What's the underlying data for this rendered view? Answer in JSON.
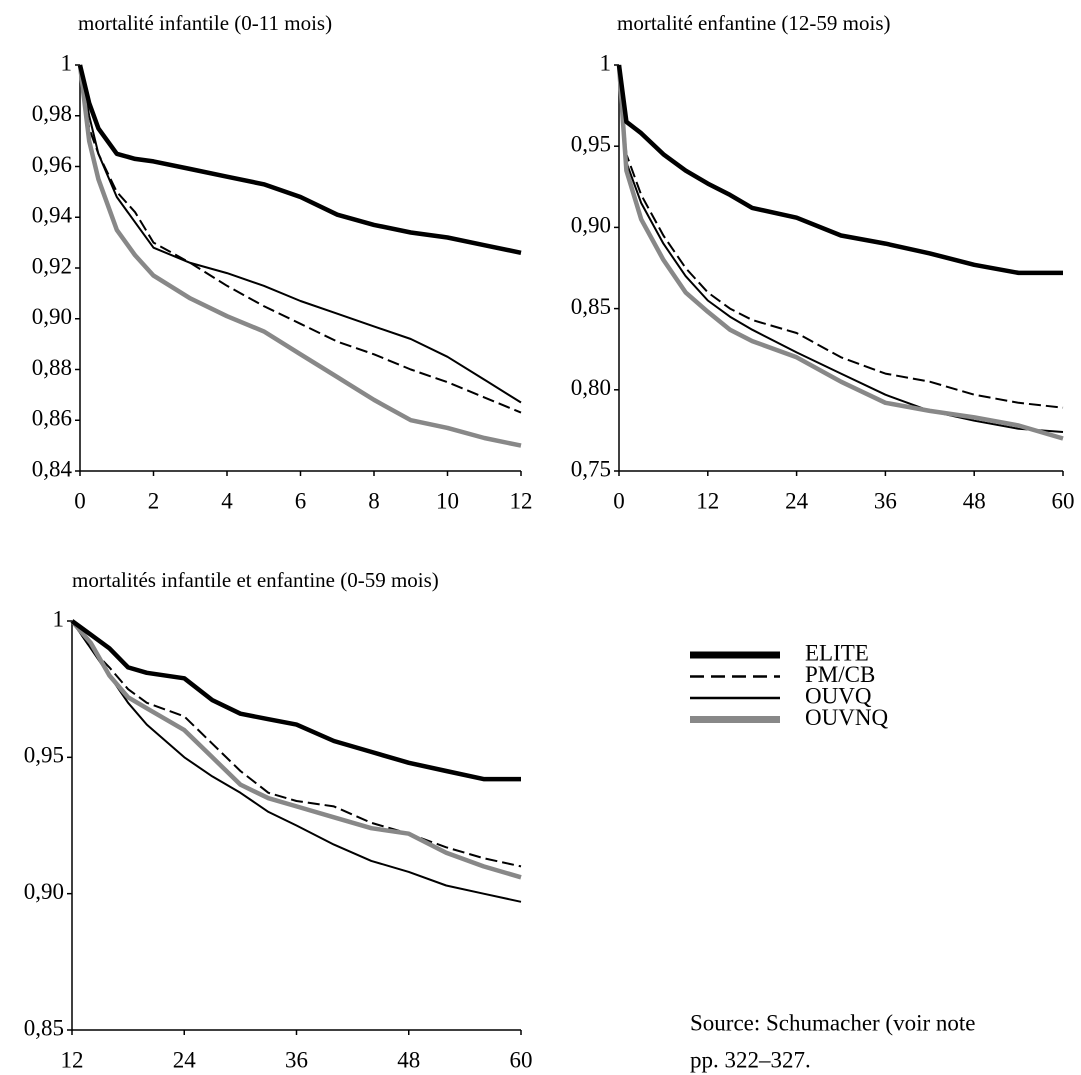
{
  "chart_data": [
    {
      "type": "line",
      "title": "mortalité infantile (0-11 mois)",
      "x": [
        0,
        0.25,
        0.5,
        1,
        1.5,
        2,
        3,
        4,
        5,
        6,
        7,
        8,
        9,
        10,
        11,
        12
      ],
      "series": [
        {
          "values": [
            1,
            0.985,
            0.975,
            0.965,
            0.963,
            0.962,
            0.959,
            0.956,
            0.953,
            0.948,
            0.941,
            0.937,
            0.934,
            0.932,
            0.929,
            0.926
          ]
        },
        {
          "values": [
            1,
            0.975,
            0.965,
            0.95,
            0.942,
            0.93,
            0.922,
            0.913,
            0.905,
            0.898,
            0.891,
            0.886,
            0.88,
            0.875,
            0.869,
            0.863
          ]
        },
        {
          "values": [
            1,
            0.98,
            0.965,
            0.948,
            0.938,
            0.928,
            0.922,
            0.918,
            0.913,
            0.907,
            0.902,
            0.897,
            0.892,
            0.885,
            0.876,
            0.867
          ]
        },
        {
          "values": [
            1,
            0.97,
            0.955,
            0.935,
            0.925,
            0.917,
            0.908,
            0.901,
            0.895,
            0.886,
            0.877,
            0.868,
            0.86,
            0.857,
            0.853,
            0.85
          ]
        }
      ],
      "xlim": [
        0,
        12
      ],
      "xticks": [
        0,
        2,
        4,
        6,
        8,
        10,
        12
      ],
      "ylim": [
        0.84,
        1
      ],
      "yticks": [
        {
          "value": 0.84,
          "label": "0,84"
        },
        {
          "value": 0.86,
          "label": "0,86"
        },
        {
          "value": 0.88,
          "label": "0,88"
        },
        {
          "value": 0.9,
          "label": "0,90"
        },
        {
          "value": 0.92,
          "label": "0,92"
        },
        {
          "value": 0.94,
          "label": "0,94"
        },
        {
          "value": 0.96,
          "label": "0,96"
        },
        {
          "value": 0.98,
          "label": "0,98"
        },
        1
      ]
    },
    {
      "type": "line",
      "title": "mortalité enfantine (12-59 mois)",
      "x": [
        0,
        1,
        3,
        6,
        9,
        12,
        15,
        18,
        24,
        30,
        36,
        42,
        48,
        54,
        60
      ],
      "series": [
        {
          "values": [
            1,
            0.965,
            0.958,
            0.945,
            0.935,
            0.927,
            0.92,
            0.912,
            0.906,
            0.895,
            0.89,
            0.884,
            0.877,
            0.872,
            0.872
          ]
        },
        {
          "values": [
            1,
            0.945,
            0.92,
            0.895,
            0.875,
            0.86,
            0.85,
            0.843,
            0.835,
            0.82,
            0.81,
            0.805,
            0.797,
            0.792,
            0.789
          ]
        },
        {
          "values": [
            1,
            0.94,
            0.915,
            0.89,
            0.87,
            0.855,
            0.845,
            0.837,
            0.823,
            0.81,
            0.797,
            0.787,
            0.781,
            0.776,
            0.774
          ]
        },
        {
          "values": [
            1,
            0.935,
            0.905,
            0.88,
            0.86,
            0.848,
            0.837,
            0.83,
            0.82,
            0.805,
            0.792,
            0.787,
            0.783,
            0.778,
            0.77
          ]
        }
      ],
      "xlim": [
        0,
        60
      ],
      "xticks": [
        0,
        12,
        24,
        36,
        48,
        60
      ],
      "ylim": [
        0.75,
        1
      ],
      "yticks": [
        {
          "value": 0.75,
          "label": "0,75"
        },
        {
          "value": 0.8,
          "label": "0,80"
        },
        {
          "value": 0.85,
          "label": "0,85"
        },
        {
          "value": 0.9,
          "label": "0,90"
        },
        {
          "value": 0.95,
          "label": "0,95"
        },
        1
      ]
    },
    {
      "type": "line",
      "title": "mortalités infantile et enfantine (0-59 mois)",
      "x": [
        12,
        14,
        16,
        18,
        20,
        24,
        27,
        30,
        33,
        36,
        40,
        44,
        48,
        52,
        56,
        60
      ],
      "series": [
        {
          "values": [
            1,
            0.995,
            0.99,
            0.983,
            0.981,
            0.979,
            0.971,
            0.966,
            0.964,
            0.962,
            0.956,
            0.952,
            0.948,
            0.945,
            0.942,
            0.942
          ]
        },
        {
          "values": [
            1,
            0.99,
            0.983,
            0.975,
            0.97,
            0.965,
            0.955,
            0.945,
            0.937,
            0.934,
            0.932,
            0.926,
            0.922,
            0.917,
            0.913,
            0.91
          ]
        },
        {
          "values": [
            1,
            0.99,
            0.98,
            0.97,
            0.962,
            0.95,
            0.943,
            0.937,
            0.93,
            0.925,
            0.918,
            0.912,
            0.908,
            0.903,
            0.9,
            0.897
          ]
        },
        {
          "values": [
            1,
            0.992,
            0.98,
            0.972,
            0.968,
            0.96,
            0.95,
            0.94,
            0.935,
            0.932,
            0.928,
            0.924,
            0.922,
            0.915,
            0.91,
            0.906
          ]
        }
      ],
      "xlim": [
        12,
        60
      ],
      "xticks": [
        12,
        24,
        36,
        48,
        60
      ],
      "ylim": [
        0.85,
        1
      ],
      "yticks": [
        {
          "value": 0.85,
          "label": "0,85"
        },
        {
          "value": 0.9,
          "label": "0,90"
        },
        {
          "value": 0.95,
          "label": "0,95"
        },
        1
      ]
    }
  ],
  "legend": [
    {
      "name": "ELITE",
      "color": "#000000",
      "bold": true,
      "dashed": false
    },
    {
      "name": "PM/CB",
      "color": "#000000",
      "bold": false,
      "dashed": true
    },
    {
      "name": "OUVQ",
      "color": "#000000",
      "bold": false,
      "dashed": false
    },
    {
      "name": "OUVNQ",
      "color": "#888888",
      "bold": true,
      "dashed": false
    }
  ],
  "source": [
    "Source: Schumacher (voir note",
    "pp. 322–327."
  ]
}
